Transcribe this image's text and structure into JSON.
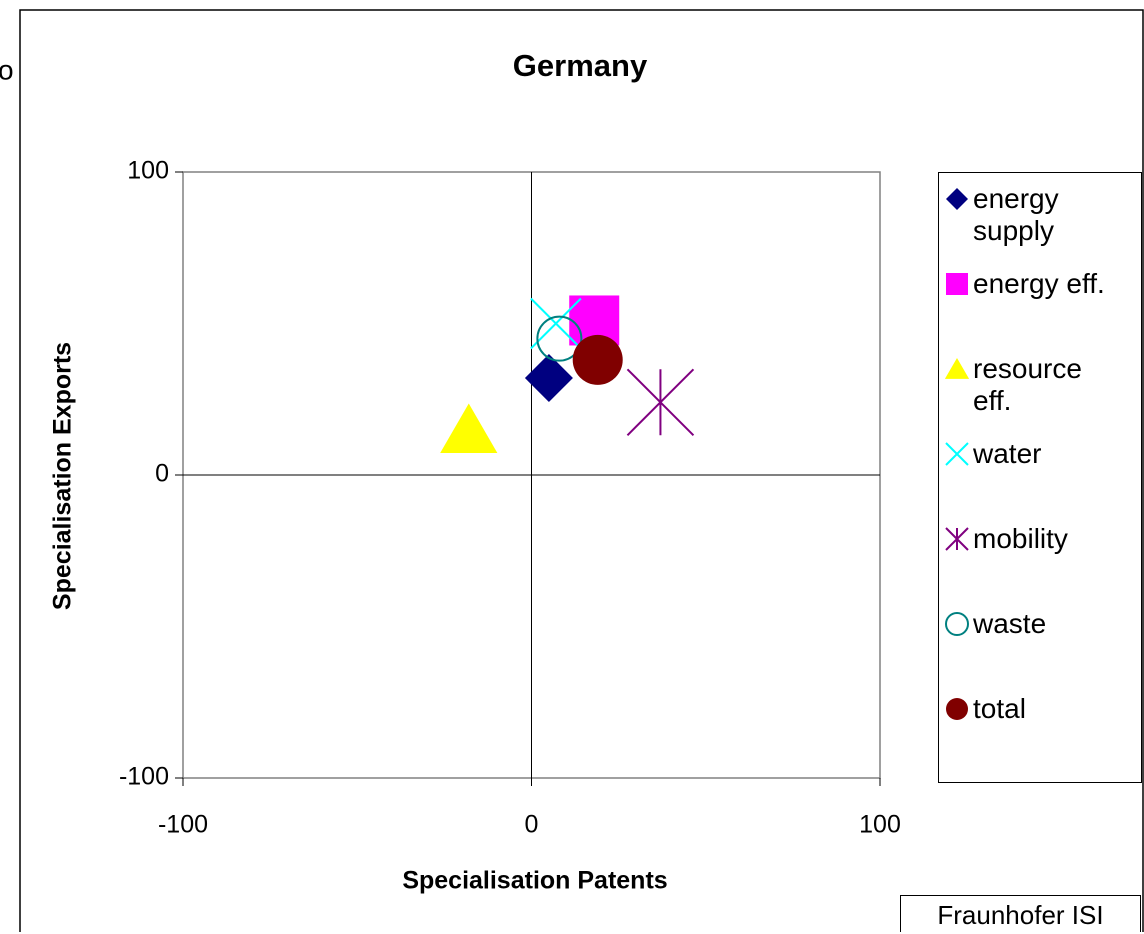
{
  "chart_data": {
    "type": "scatter",
    "title": "Germany",
    "annotation": "o",
    "xlabel": "Specialisation Patents",
    "ylabel": "Specialisation Exports",
    "xlim": [
      -100,
      100
    ],
    "xticks": [
      -100,
      0,
      100
    ],
    "ylim": [
      -100,
      100
    ],
    "yticks": [
      -100,
      0,
      100
    ],
    "credit": "Fraunhofer ISI",
    "series": [
      {
        "name": "energy supply",
        "color": "#000080",
        "marker": "diamond",
        "x": [
          5
        ],
        "y": [
          32
        ]
      },
      {
        "name": "energy eff.",
        "color": "#ff00ff",
        "marker": "square",
        "x": [
          18
        ],
        "y": [
          51
        ]
      },
      {
        "name": "resource eff.",
        "color": "#ffff00",
        "marker": "triangle",
        "x": [
          -18
        ],
        "y": [
          15
        ]
      },
      {
        "name": "water",
        "color": "#00ffff",
        "marker": "x",
        "x": [
          7
        ],
        "y": [
          50
        ]
      },
      {
        "name": "mobility",
        "color": "#800080",
        "marker": "star",
        "x": [
          37
        ],
        "y": [
          24
        ]
      },
      {
        "name": "waste",
        "color": "#008080",
        "marker": "circle-open",
        "x": [
          8
        ],
        "y": [
          45
        ]
      },
      {
        "name": "total",
        "color": "#800000",
        "marker": "circle",
        "x": [
          19
        ],
        "y": [
          38
        ]
      }
    ]
  }
}
